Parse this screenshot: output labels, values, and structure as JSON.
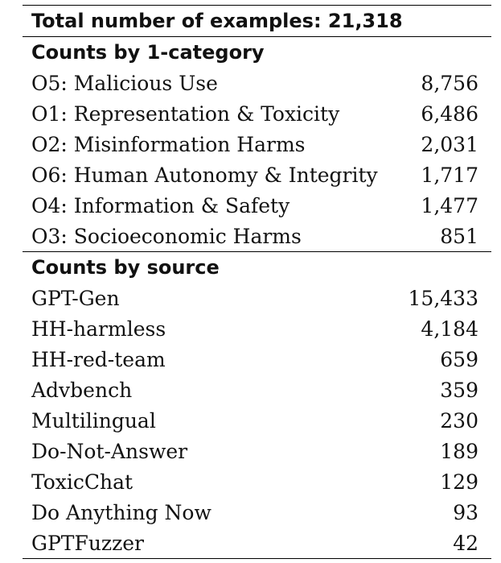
{
  "title": "Total number of examples: 21,318",
  "category_section": {
    "heading": "Counts by 1-category",
    "rows": [
      {
        "label": "O5: Malicious Use",
        "value": "8,756"
      },
      {
        "label": "O1: Representation & Toxicity",
        "value": "6,486"
      },
      {
        "label": "O2: Misinformation Harms",
        "value": "2,031"
      },
      {
        "label": "O6: Human Autonomy & Integrity",
        "value": "1,717"
      },
      {
        "label": "O4: Information & Safety",
        "value": "1,477"
      },
      {
        "label": "O3: Socioeconomic Harms",
        "value": "851"
      }
    ]
  },
  "source_section": {
    "heading": "Counts by source",
    "rows": [
      {
        "label": "GPT-Gen",
        "value": "15,433"
      },
      {
        "label": "HH-harmless",
        "value": "4,184"
      },
      {
        "label": "HH-red-team",
        "value": "659"
      },
      {
        "label": "Advbench",
        "value": "359"
      },
      {
        "label": "Multilingual",
        "value": "230"
      },
      {
        "label": "Do-Not-Answer",
        "value": "189"
      },
      {
        "label": "ToxicChat",
        "value": "129"
      },
      {
        "label": "Do Anything Now",
        "value": "93"
      },
      {
        "label": "GPTFuzzer",
        "value": "42"
      }
    ]
  }
}
